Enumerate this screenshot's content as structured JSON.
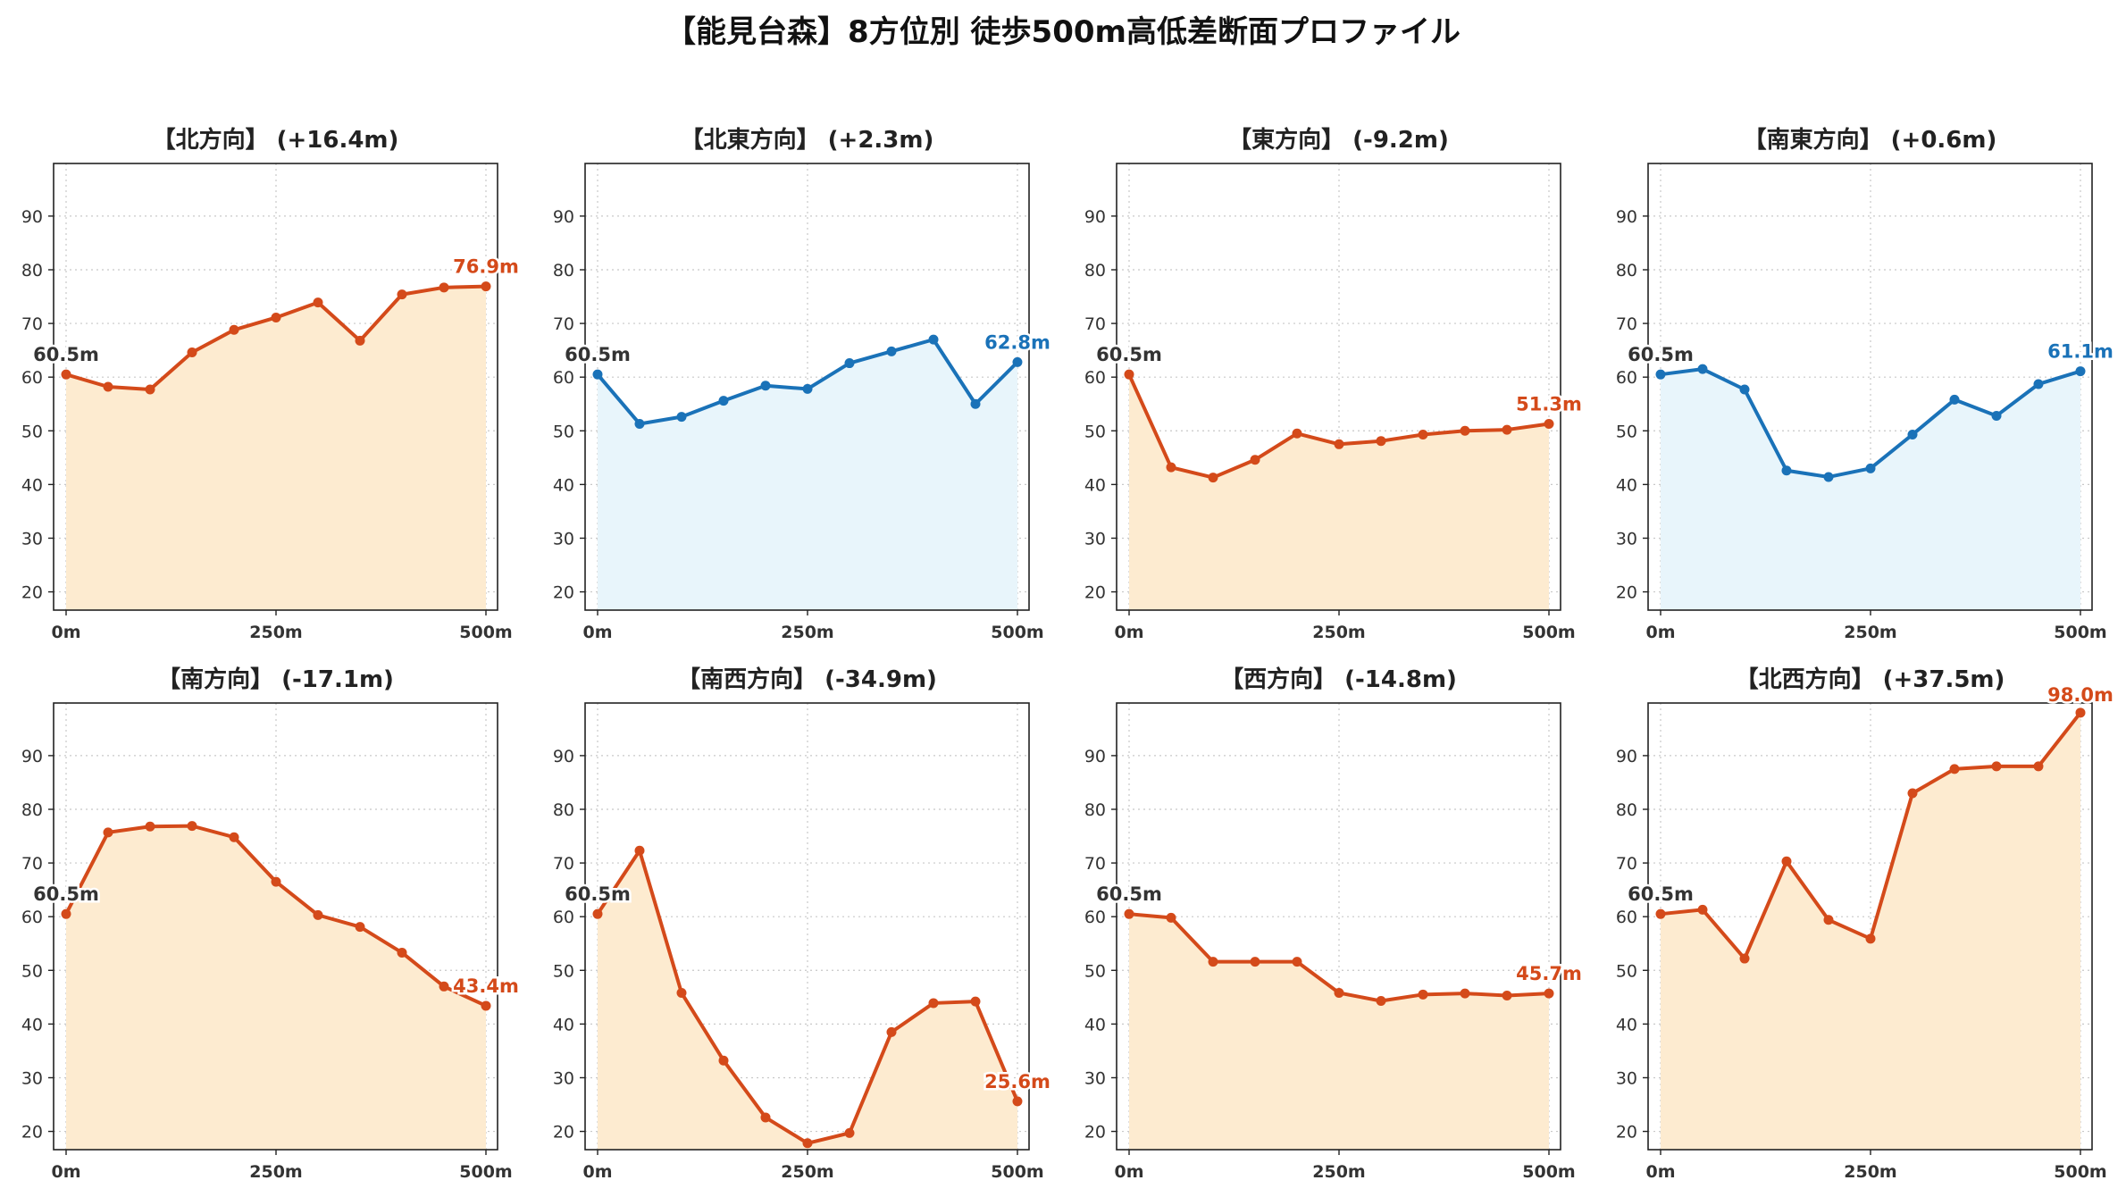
{
  "title": "【能見台森】8方位別 徒歩500m高低差断面プロファイル",
  "colors": {
    "up_line": "#d44a1a",
    "up_fill": "#fdebd0",
    "down_line": "#1a72b8",
    "down_fill": "#e8f5fb",
    "grid": "#c8c8c8",
    "axis": "#222222",
    "start_label": "#333333"
  },
  "chart_data": [
    {
      "type": "area",
      "title": "【北方向】 (+16.4m)",
      "trend": "up",
      "x": [
        0,
        50,
        100,
        150,
        200,
        250,
        300,
        350,
        400,
        450,
        500
      ],
      "values": [
        60.5,
        58.2,
        57.7,
        64.6,
        68.8,
        71.1,
        73.9,
        66.8,
        75.4,
        76.7,
        76.9
      ],
      "start_label": "60.5m",
      "end_label": "76.9m",
      "xticks": [
        "0m",
        "250m",
        "500m"
      ],
      "yticks": [
        20,
        30,
        40,
        50,
        60,
        70,
        80,
        90
      ],
      "ylim": [
        16.6,
        99.8
      ],
      "grid": true
    },
    {
      "type": "area",
      "title": "【北東方向】 (+2.3m)",
      "trend": "down",
      "x": [
        0,
        50,
        100,
        150,
        200,
        250,
        300,
        350,
        400,
        450,
        500
      ],
      "values": [
        60.5,
        51.3,
        52.6,
        55.6,
        58.4,
        57.8,
        62.6,
        64.8,
        67.0,
        55.0,
        62.8
      ],
      "start_label": "60.5m",
      "end_label": "62.8m",
      "xticks": [
        "0m",
        "250m",
        "500m"
      ],
      "yticks": [
        20,
        30,
        40,
        50,
        60,
        70,
        80,
        90
      ],
      "ylim": [
        16.6,
        99.8
      ],
      "grid": true
    },
    {
      "type": "area",
      "title": "【東方向】 (-9.2m)",
      "trend": "up",
      "x": [
        0,
        50,
        100,
        150,
        200,
        250,
        300,
        350,
        400,
        450,
        500
      ],
      "values": [
        60.5,
        43.2,
        41.3,
        44.6,
        49.5,
        47.5,
        48.1,
        49.3,
        50.0,
        50.2,
        51.3
      ],
      "start_label": "60.5m",
      "end_label": "51.3m",
      "xticks": [
        "0m",
        "250m",
        "500m"
      ],
      "yticks": [
        20,
        30,
        40,
        50,
        60,
        70,
        80,
        90
      ],
      "ylim": [
        16.6,
        99.8
      ],
      "grid": true
    },
    {
      "type": "area",
      "title": "【南東方向】 (+0.6m)",
      "trend": "down",
      "x": [
        0,
        50,
        100,
        150,
        200,
        250,
        300,
        350,
        400,
        450,
        500
      ],
      "values": [
        60.5,
        61.5,
        57.7,
        42.6,
        41.4,
        43.0,
        49.3,
        55.8,
        52.8,
        58.7,
        61.1
      ],
      "start_label": "60.5m",
      "end_label": "61.1m",
      "xticks": [
        "0m",
        "250m",
        "500m"
      ],
      "yticks": [
        20,
        30,
        40,
        50,
        60,
        70,
        80,
        90
      ],
      "ylim": [
        16.6,
        99.8
      ],
      "grid": true
    },
    {
      "type": "area",
      "title": "【南方向】 (-17.1m)",
      "trend": "up",
      "x": [
        0,
        50,
        100,
        150,
        200,
        250,
        300,
        350,
        400,
        450,
        500
      ],
      "values": [
        60.5,
        75.7,
        76.8,
        76.9,
        74.8,
        66.5,
        60.3,
        58.1,
        53.3,
        47.0,
        43.4
      ],
      "start_label": "60.5m",
      "end_label": "43.4m",
      "xticks": [
        "0m",
        "250m",
        "500m"
      ],
      "yticks": [
        20,
        30,
        40,
        50,
        60,
        70,
        80,
        90
      ],
      "ylim": [
        16.6,
        99.8
      ],
      "grid": true
    },
    {
      "type": "area",
      "title": "【南西方向】 (-34.9m)",
      "trend": "up",
      "x": [
        0,
        50,
        100,
        150,
        200,
        250,
        300,
        350,
        400,
        450,
        500
      ],
      "values": [
        60.5,
        72.3,
        45.8,
        33.2,
        22.6,
        17.8,
        19.7,
        38.5,
        43.9,
        44.2,
        25.6
      ],
      "start_label": "60.5m",
      "end_label": "25.6m",
      "xticks": [
        "0m",
        "250m",
        "500m"
      ],
      "yticks": [
        20,
        30,
        40,
        50,
        60,
        70,
        80,
        90
      ],
      "ylim": [
        16.6,
        99.8
      ],
      "grid": true
    },
    {
      "type": "area",
      "title": "【西方向】 (-14.8m)",
      "trend": "up",
      "x": [
        0,
        50,
        100,
        150,
        200,
        250,
        300,
        350,
        400,
        450,
        500
      ],
      "values": [
        60.5,
        59.8,
        51.6,
        51.6,
        51.6,
        45.8,
        44.3,
        45.5,
        45.7,
        45.3,
        45.7
      ],
      "start_label": "60.5m",
      "end_label": "45.7m",
      "xticks": [
        "0m",
        "250m",
        "500m"
      ],
      "yticks": [
        20,
        30,
        40,
        50,
        60,
        70,
        80,
        90
      ],
      "ylim": [
        16.6,
        99.8
      ],
      "grid": true
    },
    {
      "type": "area",
      "title": "【北西方向】 (+37.5m)",
      "trend": "up",
      "x": [
        0,
        50,
        100,
        150,
        200,
        250,
        300,
        350,
        400,
        450,
        500
      ],
      "values": [
        60.5,
        61.3,
        52.2,
        70.3,
        59.4,
        55.9,
        83.0,
        87.5,
        88.0,
        88.0,
        98.0
      ],
      "start_label": "60.5m",
      "end_label": "98.0m",
      "xticks": [
        "0m",
        "250m",
        "500m"
      ],
      "yticks": [
        20,
        30,
        40,
        50,
        60,
        70,
        80,
        90
      ],
      "ylim": [
        16.6,
        99.8
      ],
      "grid": true
    }
  ]
}
